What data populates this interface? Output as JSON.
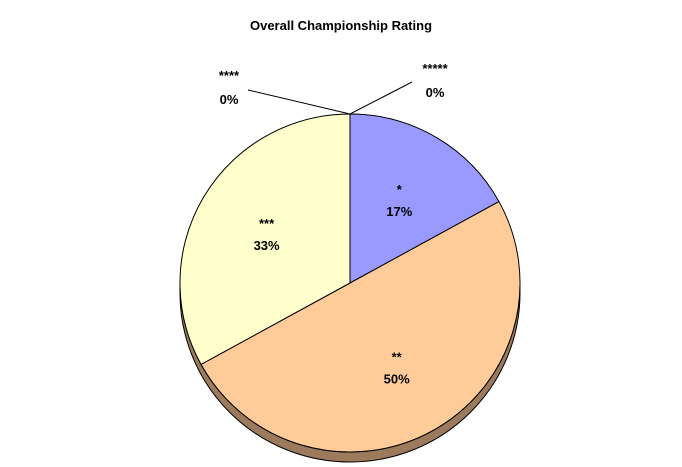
{
  "chart_data": {
    "type": "pie",
    "title": "Overall Championship Rating",
    "slices": [
      {
        "label": "*",
        "value": 17,
        "value_label": "17%",
        "color": "#9999FF"
      },
      {
        "label": "**",
        "value": 50,
        "value_label": "50%",
        "color": "#FFCC99"
      },
      {
        "label": "***",
        "value": 33,
        "value_label": "33%",
        "color": "#FFFFCC"
      },
      {
        "label": "****",
        "value": 0,
        "value_label": "0%",
        "color": "#FFFFCC"
      },
      {
        "label": "*****",
        "value": 0,
        "value_label": "0%",
        "color": "#9999FF"
      }
    ],
    "start_angle_deg": 0,
    "direction": "clockwise",
    "style": "3d",
    "legend": "none",
    "edge_color": "#000000",
    "shadow_color": "#9B7B5B"
  }
}
